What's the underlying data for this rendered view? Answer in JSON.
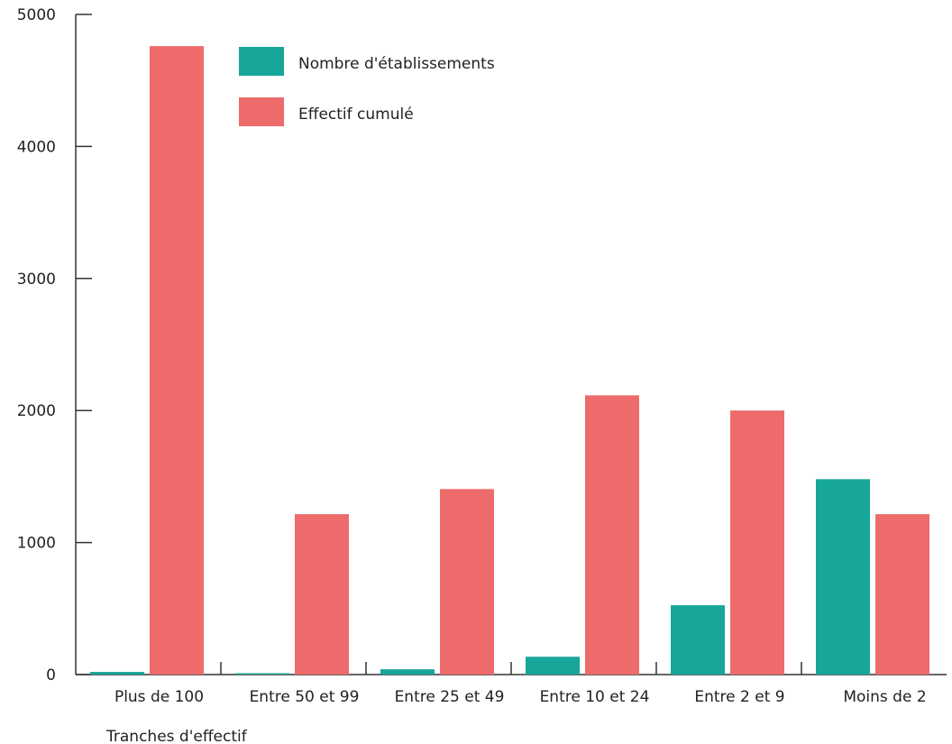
{
  "chart_data": {
    "type": "bar",
    "title": "",
    "xlabel": "Tranches d'effectif",
    "ylabel": "",
    "categories": [
      "Plus de 100",
      "Entre 50 et 99",
      "Entre 25 et 49",
      "Entre 10 et 24",
      "Entre 2 et 9",
      "Moins de 2"
    ],
    "series": [
      {
        "name": "Nombre d'établissements",
        "color": "#17a69a",
        "values": [
          20,
          10,
          40,
          135,
          525,
          1480
        ]
      },
      {
        "name": "Effectif cumulé",
        "color": "#ee6b6b",
        "values": [
          4760,
          1215,
          1405,
          2115,
          2000,
          1215
        ]
      }
    ],
    "ylim": [
      0,
      5000
    ],
    "yticks": [
      0,
      1000,
      2000,
      3000,
      4000,
      5000
    ],
    "legend_position": "top",
    "grid": false
  }
}
